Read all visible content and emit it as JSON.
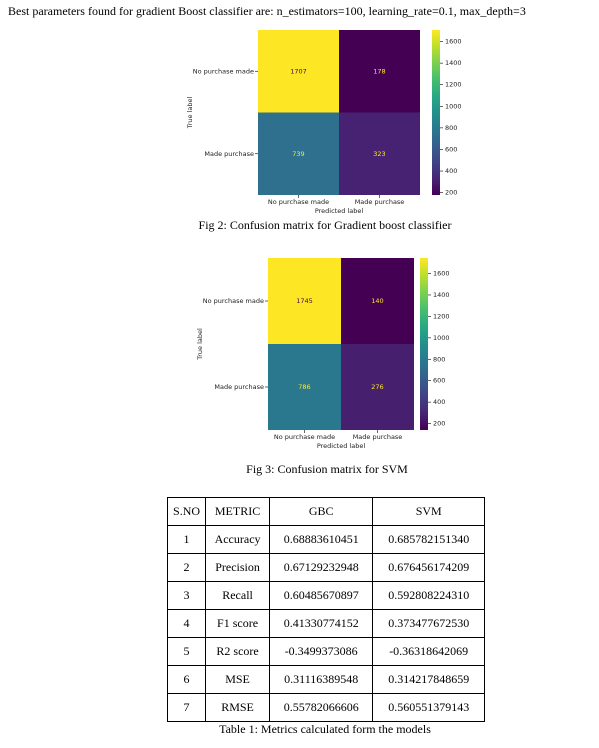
{
  "header": {
    "title": "Best parameters found for gradient Boost classifier are: n_estimators=100, learning_rate=0.1, max_depth=3"
  },
  "chart_data": [
    {
      "type": "heatmap",
      "colormap": "viridis",
      "xlabel": "Predicted label",
      "ylabel": "True label",
      "x_categories": [
        "No purchase made",
        "Made purchase"
      ],
      "y_categories": [
        "No purchase made",
        "Made purchase"
      ],
      "values": [
        [
          1707,
          178
        ],
        [
          739,
          323
        ]
      ],
      "clim": [
        178,
        1707
      ],
      "colorbar_ticks": [
        200,
        400,
        600,
        800,
        1000,
        1200,
        1400,
        1600
      ]
    },
    {
      "type": "heatmap",
      "colormap": "viridis",
      "xlabel": "Predicted label",
      "ylabel": "True label",
      "x_categories": [
        "No purchase made",
        "Made purchase"
      ],
      "y_categories": [
        "No purchase made",
        "Made purchase"
      ],
      "values": [
        [
          1745,
          140
        ],
        [
          786,
          276
        ]
      ],
      "clim": [
        140,
        1745
      ],
      "colorbar_ticks": [
        200,
        400,
        600,
        800,
        1000,
        1200,
        1400,
        1600
      ]
    }
  ],
  "captions": [
    "Fig 2: Confusion matrix for Gradient boost classifier",
    "Fig 3: Confusion matrix for SVM",
    "Table 1: Metrics calculated form the models"
  ],
  "table": {
    "header": [
      "S.NO",
      "METRIC",
      "GBC",
      "SVM"
    ],
    "rows": [
      [
        "1",
        "Accuracy",
        "0.68883610451",
        "0.685782151340"
      ],
      [
        "2",
        "Precision",
        "0.67129232948",
        "0.676456174209"
      ],
      [
        "3",
        "Recall",
        "0.60485670897",
        "0.592808224310"
      ],
      [
        "4",
        "F1 score",
        "0.41330774152",
        "0.373477672530"
      ],
      [
        "5",
        "R2 score",
        "-0.3499373086",
        "-0.36318642069"
      ],
      [
        "6",
        "MSE",
        "0.31116389548",
        "0.314217848659"
      ],
      [
        "7",
        "RMSE",
        "0.55782066606",
        "0.560551379143"
      ]
    ]
  }
}
